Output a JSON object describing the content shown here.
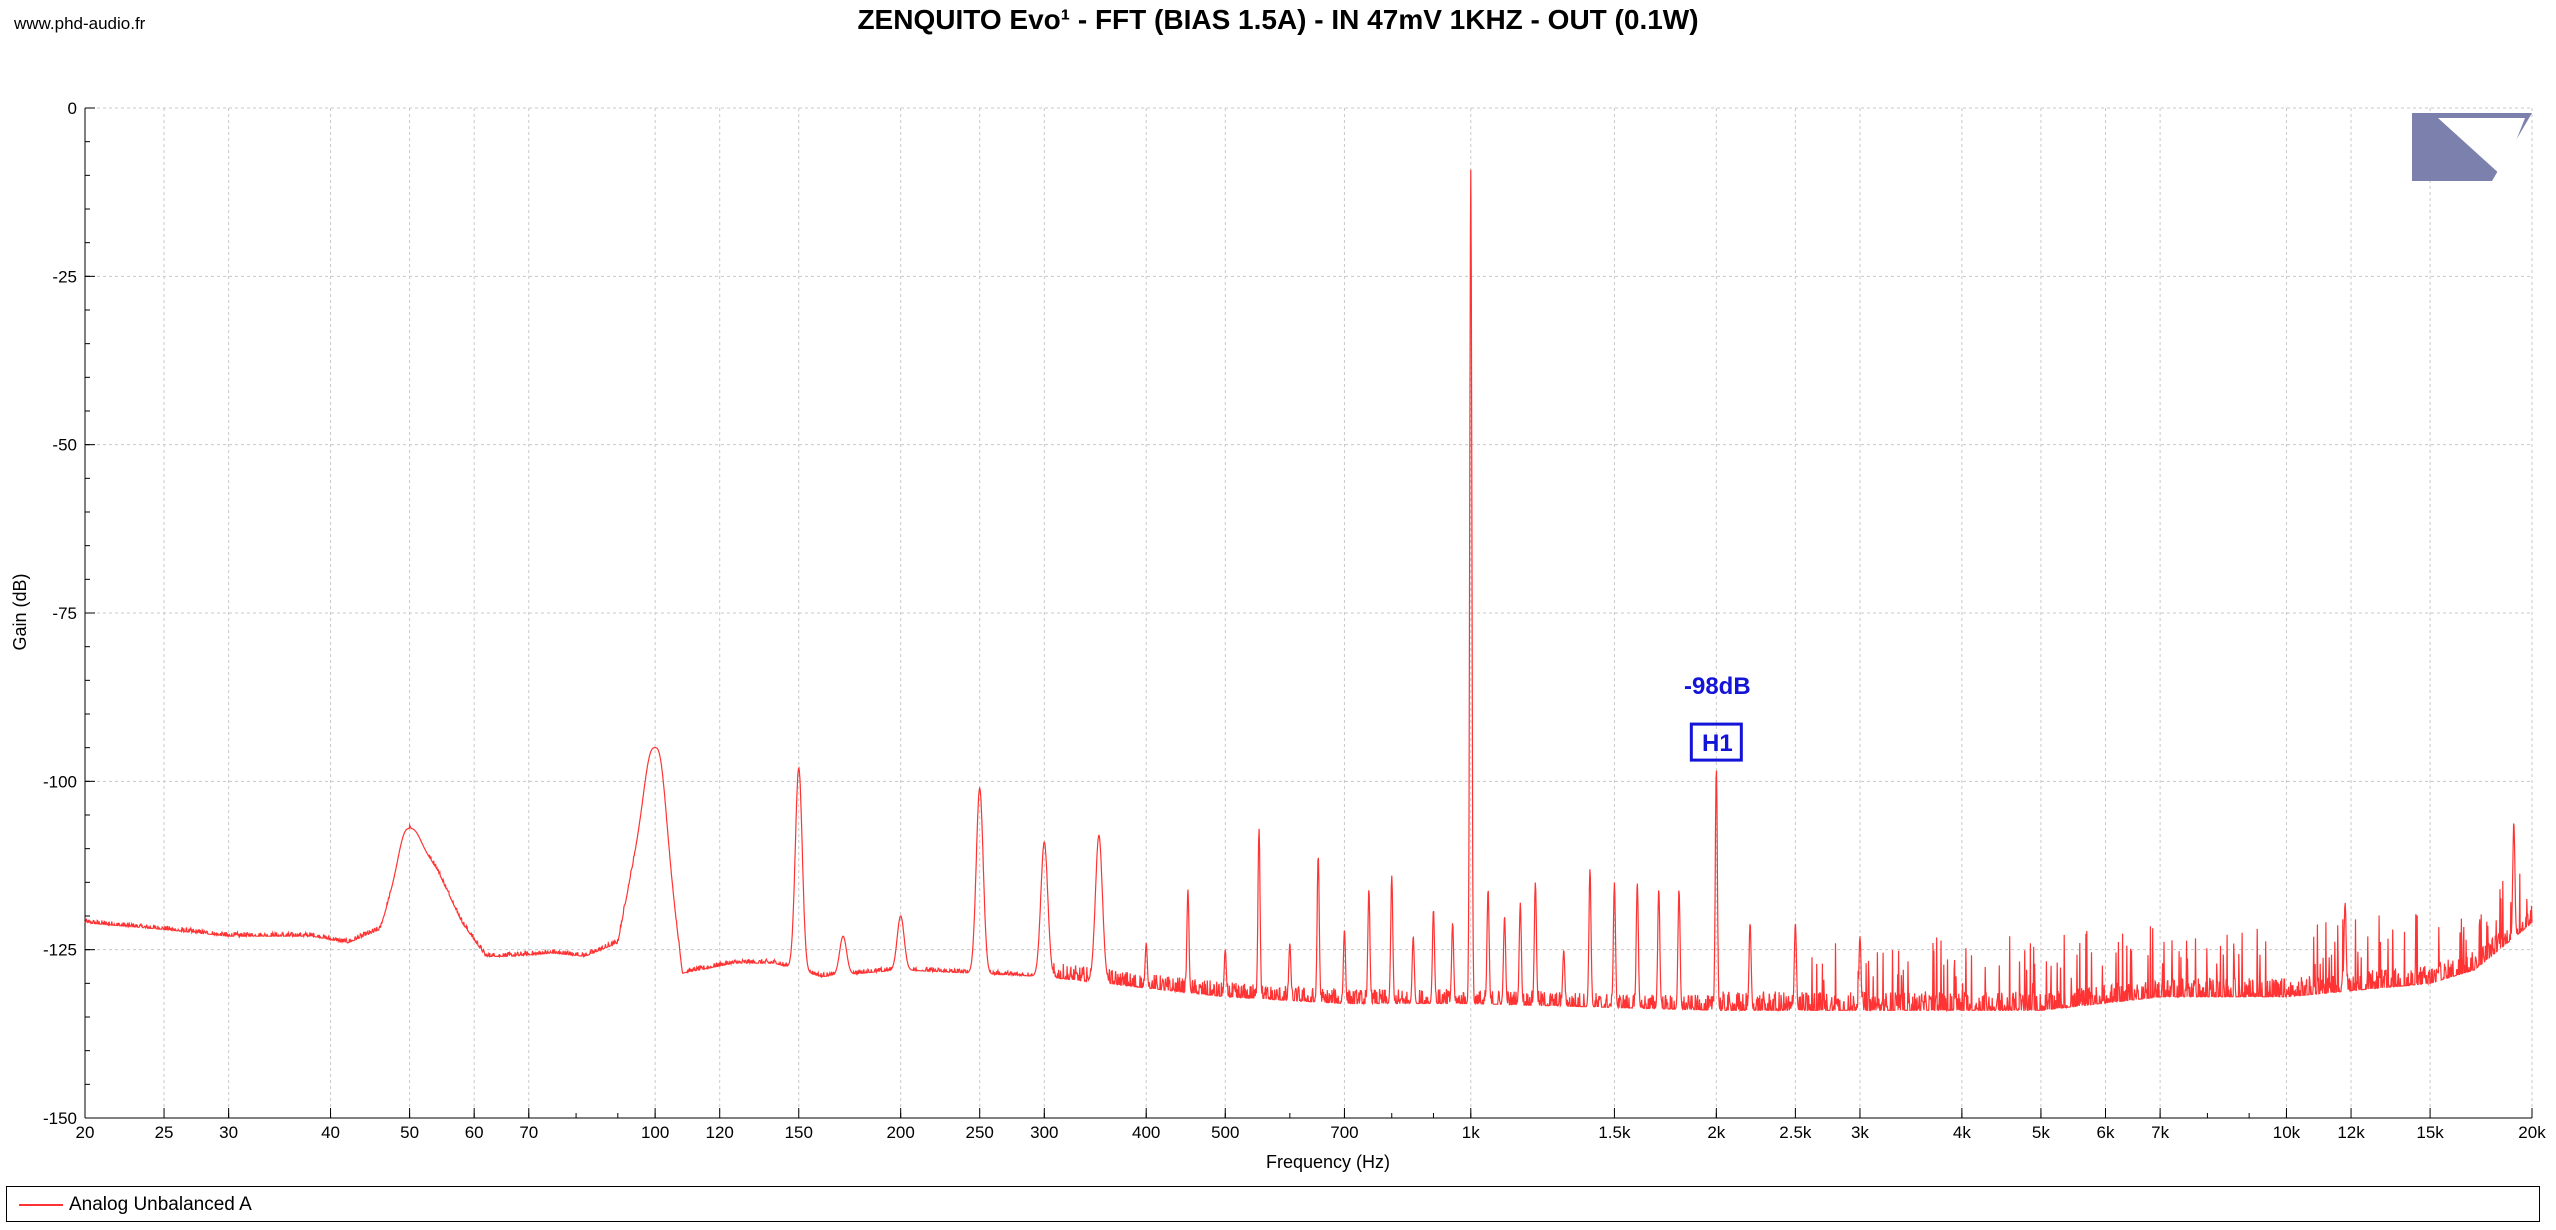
{
  "site": "www.phd-audio.fr",
  "colors": {
    "trace": "#ff3333",
    "grid": "#c8c8c8",
    "annotation": "#1414d8",
    "logo": "#7b80ad"
  },
  "logo_icon": "triangle-logo-icon",
  "chart_data": {
    "type": "line",
    "title": "ZENQUITO Evo¹ - FFT (BIAS 1.5A) - IN 47mV 1KHZ - OUT (0.1W)",
    "xlabel": "Frequency (Hz)",
    "ylabel": "Gain (dB)",
    "xscale": "log",
    "xlim": [
      20,
      20000
    ],
    "ylim": [
      -150,
      0
    ],
    "grid": true,
    "legend_position": "bottom",
    "x_ticks": [
      {
        "value": 20,
        "label": "20"
      },
      {
        "value": 25,
        "label": "25"
      },
      {
        "value": 30,
        "label": "30"
      },
      {
        "value": 40,
        "label": "40"
      },
      {
        "value": 50,
        "label": "50"
      },
      {
        "value": 60,
        "label": "60"
      },
      {
        "value": 70,
        "label": "70"
      },
      {
        "value": 100,
        "label": "100"
      },
      {
        "value": 120,
        "label": "120"
      },
      {
        "value": 150,
        "label": "150"
      },
      {
        "value": 200,
        "label": "200"
      },
      {
        "value": 250,
        "label": "250"
      },
      {
        "value": 300,
        "label": "300"
      },
      {
        "value": 400,
        "label": "400"
      },
      {
        "value": 500,
        "label": "500"
      },
      {
        "value": 700,
        "label": "700"
      },
      {
        "value": 1000,
        "label": "1k"
      },
      {
        "value": 1500,
        "label": "1.5k"
      },
      {
        "value": 2000,
        "label": "2k"
      },
      {
        "value": 2500,
        "label": "2.5k"
      },
      {
        "value": 3000,
        "label": "3k"
      },
      {
        "value": 4000,
        "label": "4k"
      },
      {
        "value": 5000,
        "label": "5k"
      },
      {
        "value": 6000,
        "label": "6k"
      },
      {
        "value": 7000,
        "label": "7k"
      },
      {
        "value": 10000,
        "label": "10k"
      },
      {
        "value": 12000,
        "label": "12k"
      },
      {
        "value": 15000,
        "label": "15k"
      },
      {
        "value": 20000,
        "label": "20k"
      }
    ],
    "y_ticks": [
      {
        "value": 0,
        "label": "0"
      },
      {
        "value": -25,
        "label": "-25"
      },
      {
        "value": -50,
        "label": "-50"
      },
      {
        "value": -75,
        "label": "-75"
      },
      {
        "value": -100,
        "label": "-100"
      },
      {
        "value": -125,
        "label": "-125"
      },
      {
        "value": -150,
        "label": "-150"
      }
    ],
    "series": [
      {
        "name": "Analog Unbalanced A",
        "baseline": [
          [
            20,
            -121
          ],
          [
            25,
            -122
          ],
          [
            30,
            -123
          ],
          [
            38,
            -123
          ],
          [
            42,
            -124
          ],
          [
            46,
            -122
          ],
          [
            50,
            -107
          ],
          [
            54,
            -113
          ],
          [
            58,
            -121
          ],
          [
            62,
            -126
          ],
          [
            66,
            -126
          ],
          [
            75,
            -125.5
          ],
          [
            82,
            -126
          ],
          [
            90,
            -124
          ],
          [
            100,
            -95
          ],
          [
            108,
            -128.5
          ],
          [
            125,
            -127
          ],
          [
            140,
            -127
          ],
          [
            160,
            -129
          ],
          [
            200,
            -128
          ],
          [
            300,
            -129
          ],
          [
            500,
            -132
          ],
          [
            700,
            -133
          ],
          [
            1000,
            -133
          ],
          [
            2000,
            -134
          ],
          [
            3000,
            -134
          ],
          [
            5000,
            -134
          ],
          [
            7000,
            -132
          ],
          [
            10000,
            -132
          ],
          [
            15000,
            -130
          ],
          [
            17000,
            -128
          ],
          [
            20000,
            -121
          ]
        ],
        "peaks": [
          [
            50,
            -107
          ],
          [
            100,
            -95
          ],
          [
            150,
            -98
          ],
          [
            170,
            -123
          ],
          [
            200,
            -120
          ],
          [
            250,
            -101
          ],
          [
            300,
            -109
          ],
          [
            350,
            -108
          ],
          [
            400,
            -124
          ],
          [
            450,
            -116
          ],
          [
            500,
            -125
          ],
          [
            550,
            -107
          ],
          [
            600,
            -124
          ],
          [
            650,
            -111
          ],
          [
            700,
            -122
          ],
          [
            750,
            -116
          ],
          [
            800,
            -114
          ],
          [
            850,
            -123
          ],
          [
            900,
            -119
          ],
          [
            950,
            -121
          ],
          [
            1000,
            -9
          ],
          [
            1050,
            -116
          ],
          [
            1100,
            -120
          ],
          [
            1150,
            -118
          ],
          [
            1200,
            -115
          ],
          [
            1300,
            -125
          ],
          [
            1400,
            -113
          ],
          [
            1500,
            -115
          ],
          [
            1600,
            -115
          ],
          [
            1700,
            -116
          ],
          [
            1800,
            -116
          ],
          [
            2000,
            -98
          ],
          [
            2200,
            -121
          ],
          [
            2500,
            -121
          ],
          [
            3000,
            -123
          ],
          [
            11800,
            -118
          ],
          [
            19000,
            -106
          ]
        ]
      }
    ],
    "annotations": [
      {
        "x": 2000,
        "y": -98,
        "value_label": "-98dB",
        "marker_label": "H1"
      }
    ]
  }
}
